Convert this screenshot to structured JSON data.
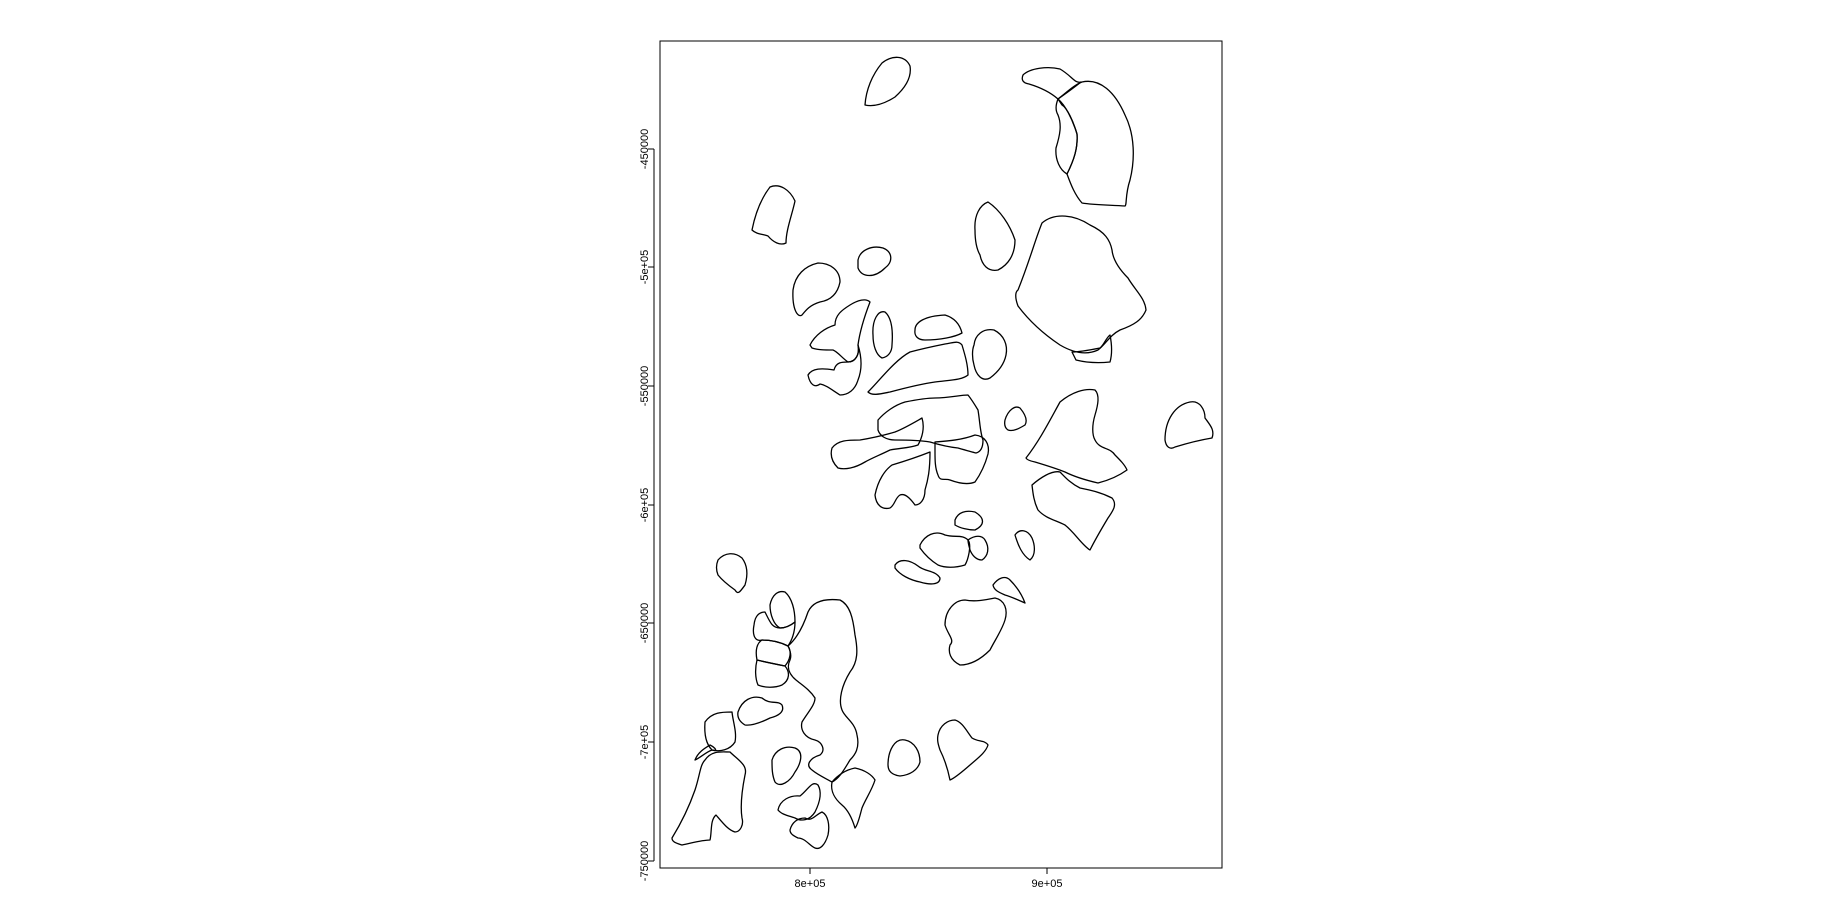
{
  "map": {
    "x_ticks": [
      {
        "value": 800000,
        "label": "8e+05"
      },
      {
        "value": 900000,
        "label": "9e+05"
      }
    ],
    "y_ticks": [
      {
        "value": -450000,
        "label": "-450000"
      },
      {
        "value": -500000,
        "label": "-5e+05"
      },
      {
        "value": -550000,
        "label": "-550000"
      },
      {
        "value": -600000,
        "label": "-6e+05"
      },
      {
        "value": -650000,
        "label": "-650000"
      },
      {
        "value": -700000,
        "label": "-7e+05"
      },
      {
        "value": -750000,
        "label": "-750000"
      }
    ],
    "polygon_count": 46,
    "stroke_color": "#000000",
    "background_color": "#ffffff"
  }
}
